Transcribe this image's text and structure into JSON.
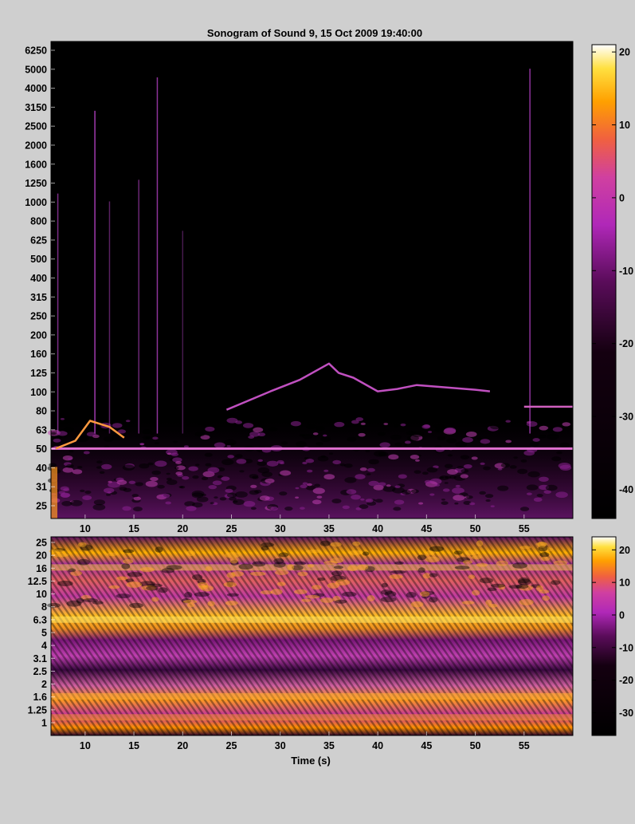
{
  "chart_data": [
    {
      "type": "heatmap",
      "title": "Sonogram of Sound 9, 15 Oct 2009 19:40:00",
      "xlabel": "",
      "ylabel": "",
      "x_ticks": [
        10,
        15,
        20,
        25,
        30,
        35,
        40,
        45,
        50,
        55
      ],
      "xlim": [
        6.5,
        60
      ],
      "y_scale": "log",
      "y_ticks": [
        "25",
        "31",
        "40",
        "50",
        "63",
        "80",
        "100",
        "125",
        "160",
        "200",
        "250",
        "315",
        "400",
        "500",
        "625",
        "800",
        "1000",
        "1250",
        "1600",
        "2000",
        "2500",
        "3150",
        "4000",
        "5000",
        "6250"
      ],
      "colorbar_ticks": [
        20,
        10,
        0,
        -10,
        -20,
        -30,
        -40
      ],
      "colorbar_range": [
        -44,
        21
      ],
      "colormap": [
        "#000000",
        "#2a0020",
        "#7a107a",
        "#c030c0",
        "#e05080",
        "#ff8000",
        "#ffd000",
        "#ffffff"
      ],
      "features": [
        {
          "name": "50 Hz hum line",
          "freq_hz": 50,
          "t_start": 6.5,
          "t_end": 60
        },
        {
          "name": "rising tone",
          "points": [
            [
              7,
              50
            ],
            [
              9,
              55
            ],
            [
              10.5,
              70
            ],
            [
              12.5,
              65
            ],
            [
              14,
              57
            ]
          ]
        },
        {
          "name": "sweep",
          "points": [
            [
              24.5,
              80
            ],
            [
              29,
              100
            ],
            [
              32,
              115
            ],
            [
              35,
              140
            ],
            [
              36,
              125
            ],
            [
              37.5,
              118
            ],
            [
              40,
              100
            ],
            [
              42,
              103
            ],
            [
              44,
              108
            ],
            [
              50,
              102
            ],
            [
              51.5,
              100
            ]
          ]
        },
        {
          "name": "tone 83 Hz",
          "freq_hz": 83,
          "t_start": 55,
          "t_end": 60
        }
      ]
    },
    {
      "type": "heatmap",
      "xlabel": "Time (s)",
      "x_ticks": [
        10,
        15,
        20,
        25,
        30,
        35,
        40,
        45,
        50,
        55
      ],
      "xlim": [
        6.5,
        60
      ],
      "y_scale": "log",
      "y_ticks": [
        "1",
        "1.25",
        "1.6",
        "2",
        "2.5",
        "3.1",
        "4",
        "5",
        "6.3",
        "8",
        "10",
        "12.5",
        "16",
        "20",
        "25"
      ],
      "colorbar_ticks": [
        20,
        10,
        0,
        -10,
        -20,
        -30
      ],
      "colorbar_range": [
        -37,
        24
      ],
      "colormap": [
        "#000000",
        "#2a0020",
        "#7a107a",
        "#c030c0",
        "#e05080",
        "#ff8000",
        "#ffd000",
        "#ffffff"
      ]
    }
  ]
}
